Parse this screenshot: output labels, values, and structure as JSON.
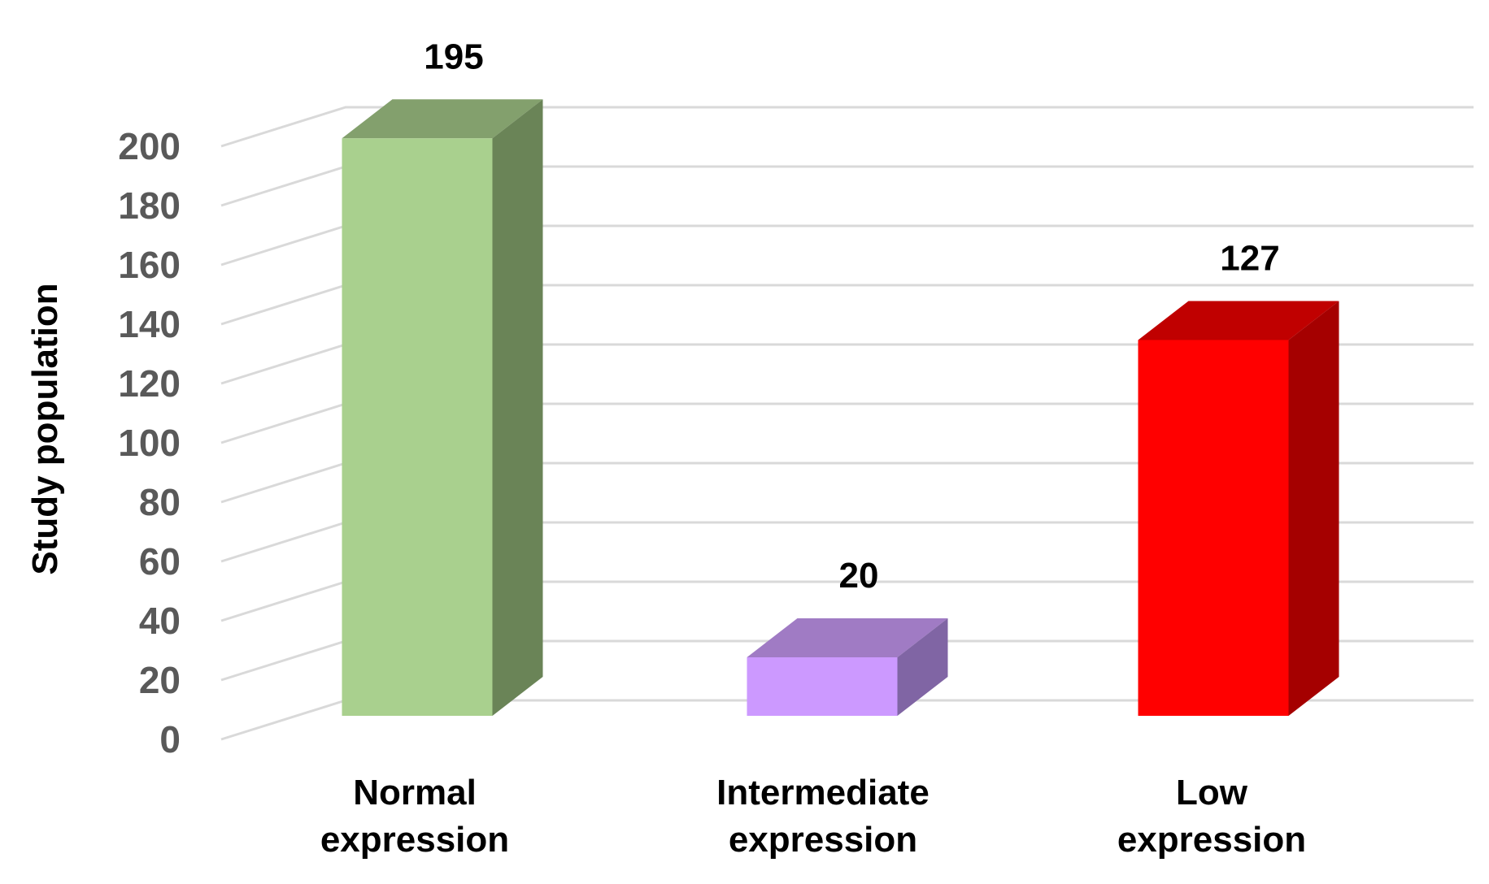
{
  "chart_data": {
    "type": "bar",
    "style": "3d-column",
    "categories": [
      [
        "Normal",
        "expression"
      ],
      [
        "Intermediate",
        "expression"
      ],
      [
        "Low",
        "expression"
      ]
    ],
    "values": [
      195,
      20,
      127
    ],
    "data_labels": [
      "195",
      "20",
      "127"
    ],
    "ylabel": "Study population",
    "xlabel": "",
    "ylim": [
      0,
      200
    ],
    "yticks": [
      0,
      20,
      40,
      60,
      80,
      100,
      120,
      140,
      160,
      180,
      200
    ],
    "grid": true,
    "legend": "none",
    "colors": [
      {
        "front": "#a9d08e",
        "side": "#6a8457",
        "top": "#83a06d"
      },
      {
        "front": "#cc99ff",
        "side": "#8065a4",
        "top": "#a07bc4"
      },
      {
        "front": "#ff0000",
        "side": "#a50000",
        "top": "#c00000"
      }
    ],
    "gridline_color": "#d9d9d9"
  }
}
